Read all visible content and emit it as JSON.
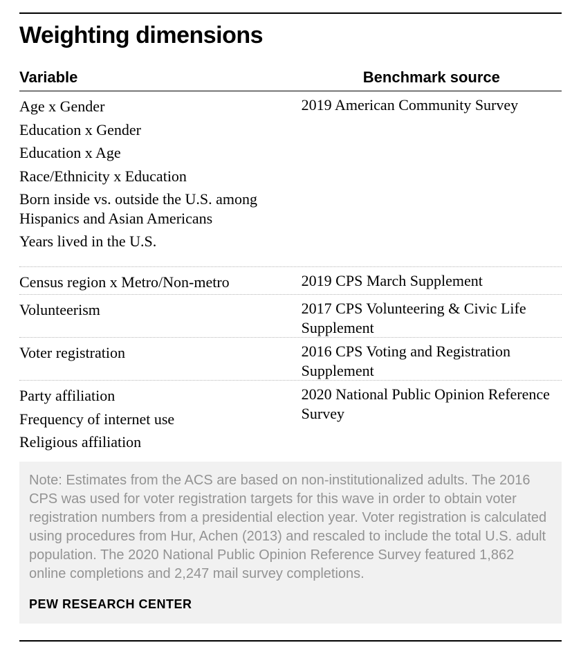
{
  "title": "Weighting dimensions",
  "columns": {
    "variable": "Variable",
    "source": "Benchmark source"
  },
  "groups": [
    {
      "variables": [
        "Age x Gender",
        "Education x Gender",
        "Education x Age",
        "Race/Ethnicity x Education",
        "Born inside vs. outside the U.S. among Hispanics and Asian Americans",
        "Years lived in the U.S."
      ],
      "source": "2019 American Community Survey",
      "gap_after": true
    },
    {
      "variables": [
        "Census region x Metro/Non-metro"
      ],
      "source": "2019 CPS March Supplement"
    },
    {
      "variables": [
        "Volunteerism"
      ],
      "source": "2017 CPS Volunteering & Civic Life Supplement"
    },
    {
      "variables": [
        "Voter registration"
      ],
      "source": "2016 CPS Voting and Registration Supplement"
    },
    {
      "variables": [
        "Party affiliation",
        "Frequency of internet use",
        "Religious affiliation"
      ],
      "source": "2020 National Public Opinion Reference Survey"
    }
  ],
  "note": "Note: Estimates from the ACS are based on non-institutionalized adults.  The 2016 CPS was used for voter registration targets for this wave in order to obtain voter registration numbers from a presidential election year. Voter registration is calculated using procedures from Hur, Achen (2013) and rescaled to include the total U.S. adult population. The 2020 National Public Opinion Reference Survey featured 1,862 online completions and 2,247 mail survey completions.",
  "attribution": "PEW RESEARCH CENTER",
  "style": {
    "title_fontsize": 34,
    "header_fontsize": 22,
    "body_fontsize": 22,
    "note_fontsize": 20,
    "attrib_fontsize": 18,
    "text_color": "#000000",
    "note_color": "#939393",
    "note_bg": "#f1f1f1",
    "dot_color": "#b5b5b5",
    "rule_color": "#000000"
  }
}
